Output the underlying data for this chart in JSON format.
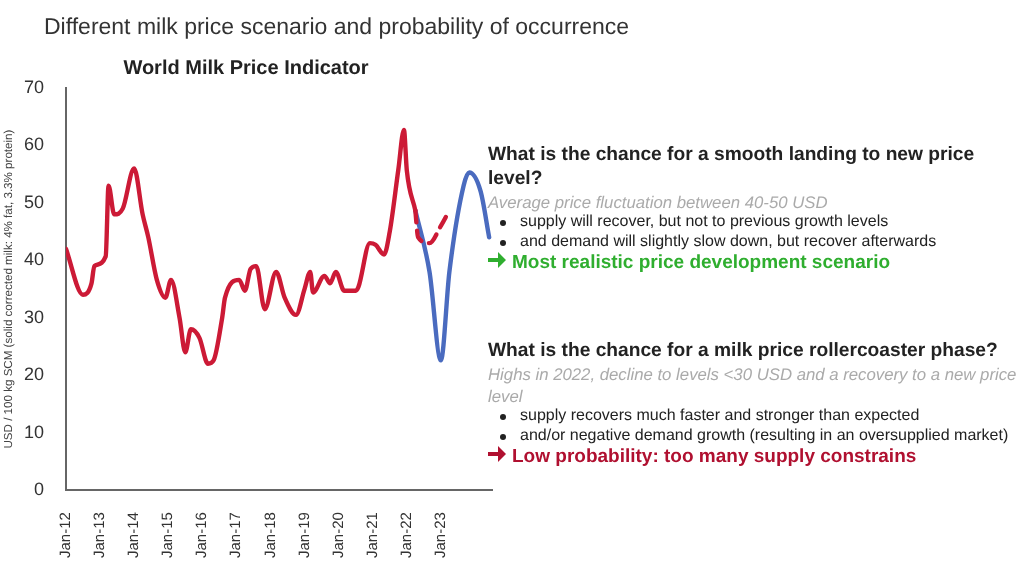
{
  "chart_data": {
    "type": "line",
    "title": "World Milk Price Indicator",
    "ylabel": "USD / 100 kg SCM (solid corrected milk: 4% fat, 3.3% protein)",
    "xlim": [
      "2012-01",
      "2024-07"
    ],
    "xticks": [
      {
        "value": "2012-01",
        "label": "Jan-12"
      },
      {
        "value": "2013-01",
        "label": "Jan-13"
      },
      {
        "value": "2014-01",
        "label": "Jan-14"
      },
      {
        "value": "2015-01",
        "label": "Jan-15"
      },
      {
        "value": "2016-01",
        "label": "Jan-16"
      },
      {
        "value": "2017-01",
        "label": "Jan-17"
      },
      {
        "value": "2018-01",
        "label": "Jan-18"
      },
      {
        "value": "2019-01",
        "label": "Jan-19"
      },
      {
        "value": "2020-01",
        "label": "Jan-20"
      },
      {
        "value": "2021-01",
        "label": "Jan-21"
      },
      {
        "value": "2022-01",
        "label": "Jan-22"
      },
      {
        "value": "2023-01",
        "label": "Jan-23"
      }
    ],
    "ylim": [
      0,
      70
    ],
    "yticks": [
      0,
      10,
      20,
      30,
      40,
      50,
      60,
      70
    ],
    "grid": false,
    "legend": false,
    "marker": "none",
    "series": [
      {
        "color": "#cc1a36",
        "line_style": "solid",
        "x": [
          "2012-01",
          "2012-07",
          "2012-10",
          "2012-11",
          "2013-03",
          "2013-04",
          "2013-06",
          "2013-09",
          "2014-01",
          "2014-04",
          "2014-06",
          "2014-09",
          "2014-12",
          "2015-02",
          "2015-05",
          "2015-07",
          "2015-09",
          "2015-12",
          "2016-03",
          "2016-05",
          "2016-08",
          "2016-09",
          "2017-02",
          "2017-04",
          "2017-06",
          "2017-08",
          "2017-11",
          "2018-03",
          "2018-06",
          "2018-10",
          "2019-01",
          "2019-03",
          "2019-04",
          "2019-08",
          "2019-10",
          "2019-12",
          "2020-03",
          "2020-07",
          "2020-08",
          "2020-12",
          "2021-02",
          "2021-05",
          "2021-07",
          "2021-10",
          "2021-12",
          "2022-01",
          "2022-04"
        ],
        "values": [
          42,
          34,
          36,
          39,
          40.7,
          53,
          48,
          49,
          56,
          48,
          44,
          36.6,
          33.5,
          36.6,
          30,
          24,
          28,
          26.5,
          22,
          22.6,
          30,
          33.5,
          36.6,
          34.7,
          38.5,
          39,
          31.5,
          38,
          33.5,
          30.5,
          35,
          38,
          34.4,
          37.3,
          36,
          38,
          34.7,
          34.7,
          35.4,
          43,
          42.7,
          41,
          45,
          55.7,
          62.7,
          55.7,
          48.7
        ]
      },
      {
        "color": "#cc1a36",
        "line_style": "dashed",
        "x": [
          "2022-04",
          "2022-05",
          "2022-09",
          "2023-01",
          "2023-04"
        ],
        "values": [
          48.7,
          44,
          43,
          46,
          48.7
        ]
      },
      {
        "color": "#4a6bbf",
        "line_style": "solid",
        "x": [
          "2022-04",
          "2022-09",
          "2023-01",
          "2023-04",
          "2023-09",
          "2023-11",
          "2024-03",
          "2024-06"
        ],
        "values": [
          48.7,
          38,
          22.6,
          38,
          53,
          55.3,
          52,
          44
        ]
      }
    ],
    "annotations": [
      "Different milk price scenario and probability of occurrence",
      "What is the chance for a smooth landing to new price level?",
      "Average price fluctuation between 40-50 USD",
      "supply will recover, but not to previous growth levels",
      "and demand will slightly slow down, but recover afterwards",
      "Most realistic price development scenario",
      "What is the chance for a milk price rollercoaster phase?",
      "Highs in 2022, decline to levels <30 USD and a recovery to a new price level",
      "supply recovers much faster and stronger than expected",
      "and/or negative demand growth (resulting in an oversupplied market)",
      "Low probability: too many supply constrains"
    ]
  }
}
